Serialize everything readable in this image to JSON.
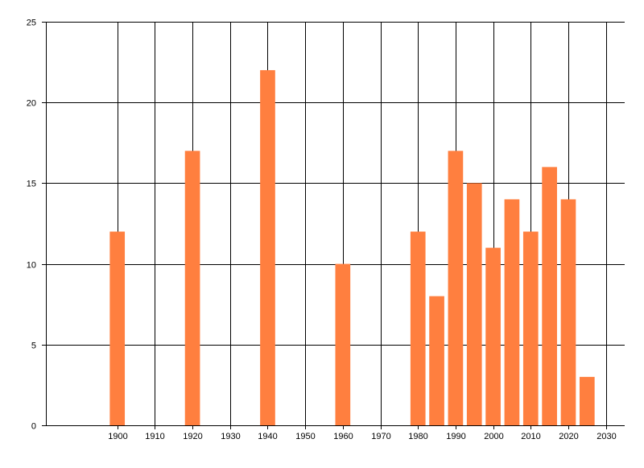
{
  "chart_data": {
    "type": "bar",
    "title": "",
    "xlabel": "",
    "ylabel": "",
    "x": [
      1900,
      1920,
      1940,
      1960,
      1980,
      1985,
      1990,
      1995,
      2000,
      2005,
      2010,
      2015,
      2020,
      2025
    ],
    "values": [
      12,
      17,
      22,
      10,
      12,
      8,
      17,
      15,
      11,
      14,
      12,
      16,
      14,
      3
    ],
    "bar_width_years": 4,
    "xlim": [
      1881,
      2035
    ],
    "ylim": [
      0,
      25
    ],
    "x_ticks": [
      1900,
      1910,
      1920,
      1930,
      1940,
      1950,
      1960,
      1970,
      1980,
      1990,
      2000,
      2010,
      2020,
      2030
    ],
    "y_ticks": [
      0,
      5,
      10,
      15,
      20,
      25
    ],
    "grid": true,
    "bar_color": "#FF7F3F",
    "grid_color": "#000000"
  }
}
